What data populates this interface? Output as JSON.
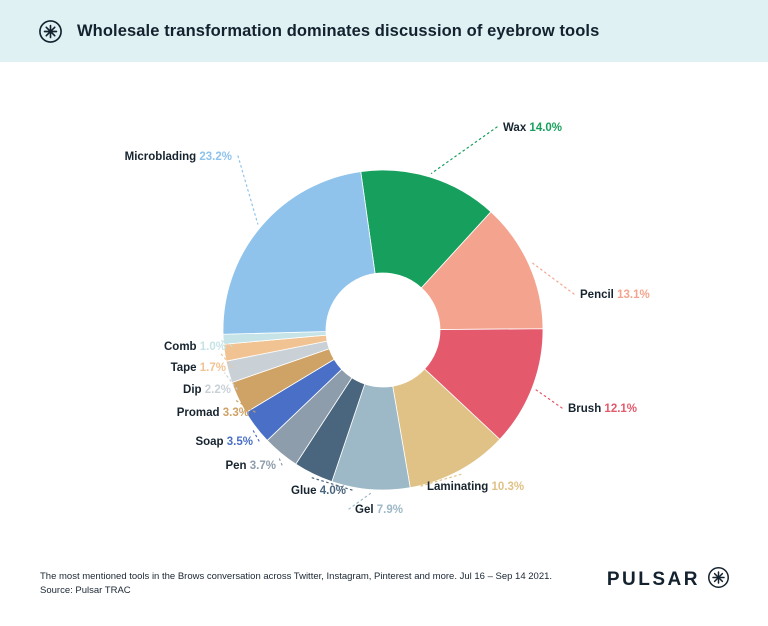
{
  "header": {
    "title": "Wholesale transformation dominates discussion of eyebrow tools",
    "logo_icon": "pulsar-circled-asterisk"
  },
  "footer": {
    "caption_line1": "The most mentioned tools in the Brows conversation across Twitter, Instagram, Pinterest and more. Jul 16 – Sep 14 2021.",
    "caption_line2": "Source: Pulsar TRAC",
    "brand": "PULSAR",
    "brand_icon": "pulsar-circled-asterisk"
  },
  "colors": {
    "header_bg": "#e0f1f3",
    "text_dark": "#13222e",
    "background": "#ffffff"
  },
  "chart_data": {
    "type": "pie",
    "donut": true,
    "title": "Wholesale transformation dominates discussion of eyebrow tools",
    "legend_position": "none",
    "start_angle_deg": -8,
    "value_unit": "%",
    "slices": [
      {
        "label": "Wax",
        "value": 14.0,
        "color": "#17a05d"
      },
      {
        "label": "Pencil",
        "value": 13.1,
        "color": "#f4a48e"
      },
      {
        "label": "Brush",
        "value": 12.1,
        "color": "#e4596b"
      },
      {
        "label": "Laminating",
        "value": 10.3,
        "color": "#e0c186"
      },
      {
        "label": "Gel",
        "value": 7.9,
        "color": "#9db8c6"
      },
      {
        "label": "Glue",
        "value": 4.0,
        "color": "#4a657e"
      },
      {
        "label": "Pen",
        "value": 3.7,
        "color": "#8e9dab"
      },
      {
        "label": "Soap",
        "value": 3.5,
        "color": "#4a6fc7"
      },
      {
        "label": "Promad",
        "value": 3.3,
        "color": "#cfa265"
      },
      {
        "label": "Dip",
        "value": 2.2,
        "color": "#c9d1d7"
      },
      {
        "label": "Tape",
        "value": 1.7,
        "color": "#f2c392"
      },
      {
        "label": "Comb",
        "value": 1.0,
        "color": "#c6e3e7"
      },
      {
        "label": "Microblading",
        "value": 23.2,
        "color": "#8fc3ec"
      }
    ]
  }
}
